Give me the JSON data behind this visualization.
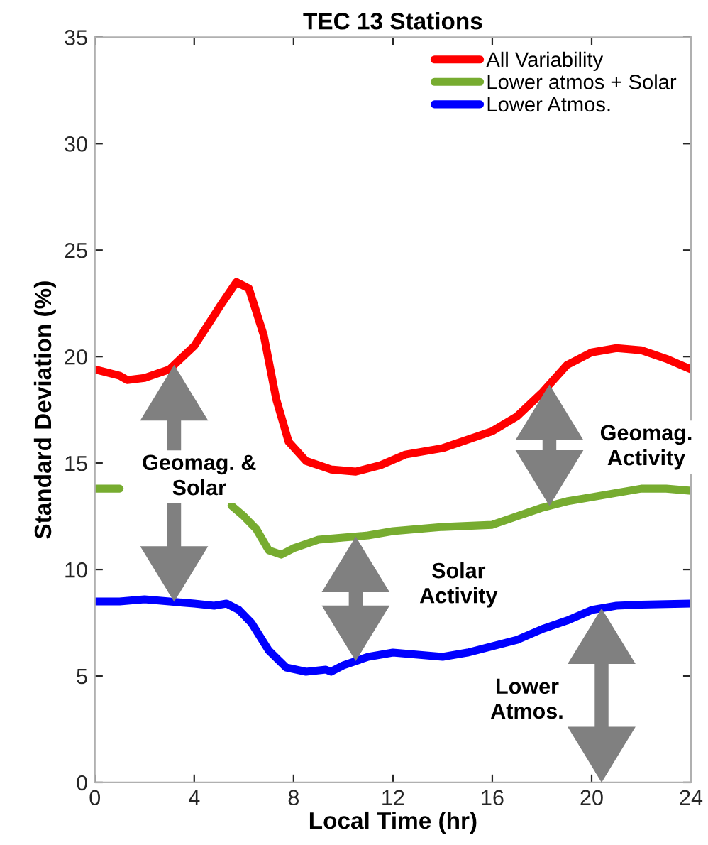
{
  "chart_data": {
    "type": "line",
    "title": "TEC 13 Stations",
    "xlabel": "Local Time (hr)",
    "ylabel": "Standard Deviation (%)",
    "xlim": [
      0,
      24
    ],
    "xticks": [
      0,
      4,
      8,
      12,
      16,
      20,
      24
    ],
    "ylim": [
      0,
      35
    ],
    "yticks": [
      0,
      5,
      10,
      15,
      20,
      25,
      30,
      35
    ],
    "grid": false,
    "legend": "top right",
    "line_style": "solid",
    "marker": "none",
    "series": [
      {
        "name": "All Variability",
        "color": "#ff0000",
        "x": [
          0,
          1,
          1.3,
          2,
          3,
          4,
          5,
          5.7,
          6.2,
          6.8,
          7.3,
          7.8,
          8.5,
          9.5,
          10.5,
          11.5,
          12.5,
          14,
          16,
          17,
          18,
          19,
          20,
          21,
          22,
          23,
          24
        ],
        "values": [
          19.4,
          19.1,
          18.9,
          19.0,
          19.4,
          20.5,
          22.3,
          23.5,
          23.2,
          21.0,
          18.0,
          16.0,
          15.1,
          14.7,
          14.6,
          14.9,
          15.4,
          15.7,
          16.5,
          17.2,
          18.3,
          19.6,
          20.2,
          20.4,
          20.3,
          19.9,
          19.4
        ]
      },
      {
        "name": "Lower atmos + Solar",
        "color": "#77ac30",
        "x": [
          0,
          1,
          3,
          5.5,
          6,
          6.5,
          7,
          7.5,
          8,
          9,
          10,
          11,
          12,
          14,
          16,
          17,
          18,
          19,
          20,
          21,
          22,
          23,
          24
        ],
        "values": [
          13.8,
          13.8,
          null,
          13.0,
          12.5,
          11.9,
          10.9,
          10.7,
          11.0,
          11.4,
          11.5,
          11.6,
          11.8,
          12.0,
          12.1,
          12.5,
          12.9,
          13.2,
          13.4,
          13.6,
          13.8,
          13.8,
          13.7
        ]
      },
      {
        "name": "Lower Atmos.",
        "color": "#0000ff",
        "x": [
          0,
          1,
          2,
          3,
          4,
          4.8,
          5.3,
          5.8,
          6.3,
          7,
          7.7,
          8.5,
          9.3,
          9.5,
          10,
          11,
          12,
          13,
          14,
          15,
          16,
          17,
          18,
          19,
          20,
          21,
          22,
          24
        ],
        "values": [
          8.5,
          8.5,
          8.6,
          8.5,
          8.4,
          8.3,
          8.4,
          8.1,
          7.5,
          6.2,
          5.4,
          5.2,
          5.3,
          5.2,
          5.5,
          5.9,
          6.1,
          6.0,
          5.9,
          6.1,
          6.4,
          6.7,
          7.2,
          7.6,
          8.1,
          8.3,
          8.35,
          8.4
        ]
      }
    ],
    "annotations": [
      "Geomag. &\nSolar",
      "Solar\nActivity",
      "Geomag.\nActivity",
      "Lower\nAtmos."
    ]
  }
}
